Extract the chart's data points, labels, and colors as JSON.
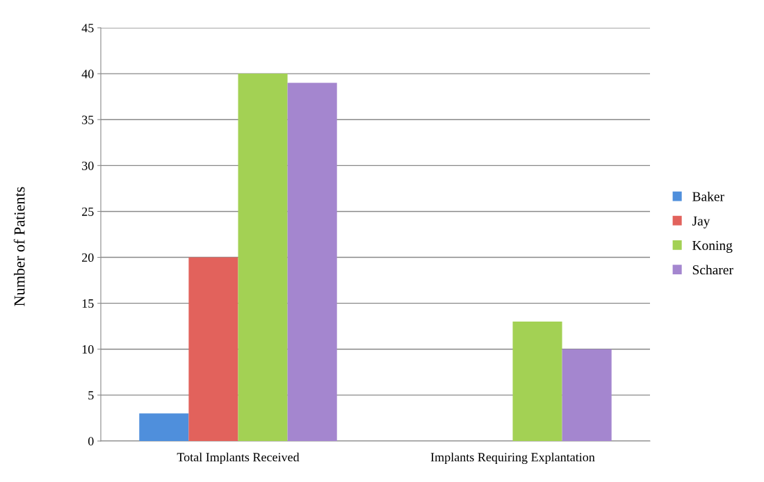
{
  "chart_data": {
    "type": "bar",
    "ylabel": "Number of Patients",
    "categories": [
      "Total Implants Received",
      "Implants Requiring Explantation"
    ],
    "series": [
      {
        "name": "Baker",
        "color": "#4f8fdc",
        "values": [
          3,
          0
        ]
      },
      {
        "name": "Jay",
        "color": "#e2625c",
        "values": [
          20,
          0
        ]
      },
      {
        "name": "Koning",
        "color": "#a3d154",
        "values": [
          40,
          13
        ]
      },
      {
        "name": "Scharer",
        "color": "#a486cf",
        "values": [
          39,
          10
        ]
      }
    ],
    "ylim": [
      0,
      45
    ],
    "yticks": [
      0,
      5,
      10,
      15,
      20,
      25,
      30,
      35,
      40,
      45
    ],
    "grid": "y",
    "legend": "right"
  }
}
